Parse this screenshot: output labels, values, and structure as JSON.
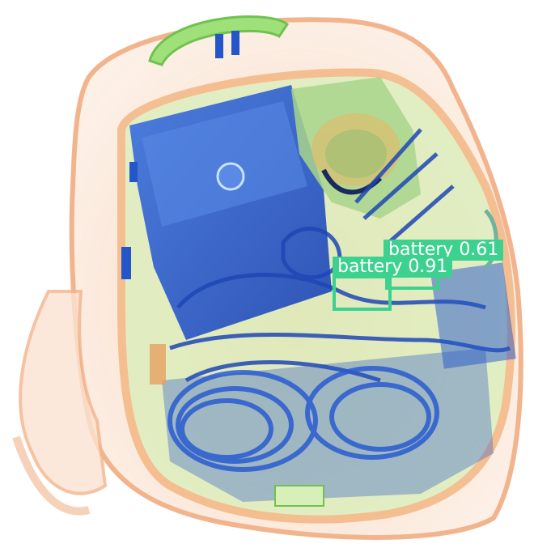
{
  "image": {
    "subject": "x-ray-scan-backpack"
  },
  "detections": [
    {
      "label": "battery",
      "score": "0.61",
      "color": "#3dd18f"
    },
    {
      "label": "battery",
      "score": "0.91",
      "color": "#3dd18f"
    }
  ],
  "palette": {
    "bag_outline": "#f2b48e",
    "bag_fill": "#fbe3d2",
    "dense_blue": "#2456c9",
    "mid_green": "#8fd36a",
    "box_green": "#3dd18f"
  }
}
